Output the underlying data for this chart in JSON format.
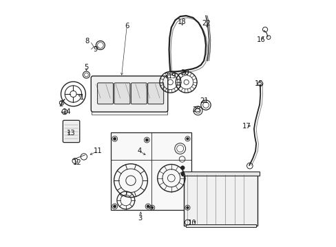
{
  "bg_color": "#ffffff",
  "fig_width": 4.89,
  "fig_height": 3.6,
  "dpi": 100,
  "line_color": "#222222"
}
